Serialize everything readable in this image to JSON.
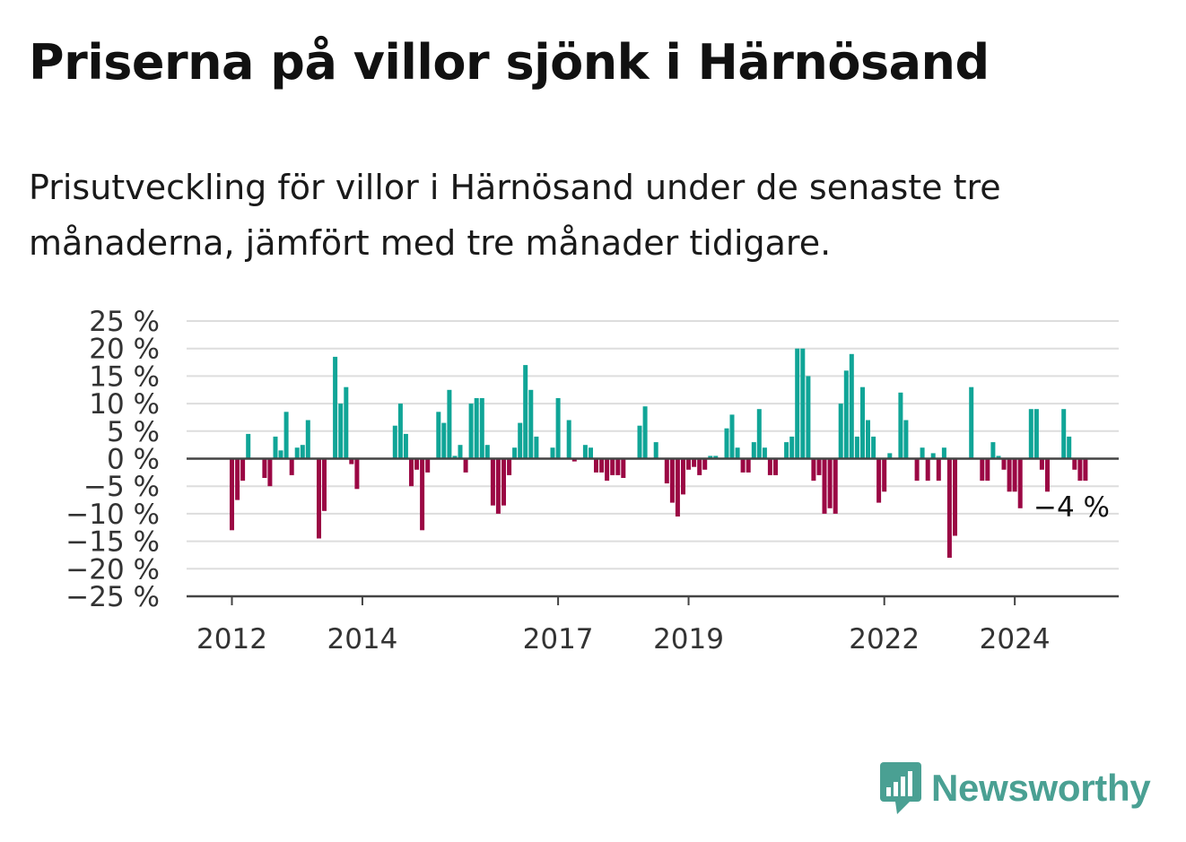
{
  "title": "Priserna på villor sjönk i Härnösand",
  "subtitle": "Prisutveckling för villor i Härnösand under de senaste tre månaderna, jämfört med tre månader tidigare.",
  "brand": {
    "name": "Newsworthy",
    "icon": "newsworthy-logo-icon",
    "color": "#4aa093"
  },
  "colors": {
    "positive": "#10a597",
    "negative": "#9b0744",
    "grid": "#dddddd",
    "axis": "#444444"
  },
  "chart_data": {
    "type": "bar",
    "ylim": [
      -25,
      25
    ],
    "yticks": [
      25,
      20,
      15,
      10,
      5,
      0,
      -5,
      -10,
      -15,
      -20,
      -25
    ],
    "ytick_labels": [
      "25 %",
      "20 %",
      "15 %",
      "10 %",
      "5 %",
      "0 %",
      "−5 %",
      "−10 %",
      "−15 %",
      "−20 %",
      "−25 %"
    ],
    "xtick_labels": [
      "2012",
      "2014",
      "2017",
      "2019",
      "2022",
      "2024"
    ],
    "xtick_months": [
      0,
      24,
      60,
      84,
      120,
      144
    ],
    "annotation": "−4 %",
    "series": [
      {
        "values": [
          -13,
          -7.5,
          -4,
          4.5,
          0,
          0,
          -3.5,
          -5,
          4,
          1.5,
          8.5,
          -3,
          2,
          2.5,
          7,
          0,
          -14.5,
          -9.5,
          0,
          18.5,
          10,
          13,
          -1,
          -5.5,
          0,
          0,
          0,
          0,
          0,
          0,
          6,
          10,
          4.5,
          -5,
          -2,
          -13,
          -2.5,
          0,
          8.5,
          6.5,
          12.5,
          0.5,
          2.5,
          -2.5,
          10,
          11,
          11,
          2.5,
          -8.5,
          -10,
          -8.5,
          -3,
          2,
          6.5,
          17,
          12.5,
          4,
          0,
          0,
          2,
          11,
          0,
          7,
          -0.5,
          0,
          2.5,
          2,
          -2.5,
          -2.5,
          -4,
          -3,
          -3,
          -3.5,
          0,
          0,
          6,
          9.5,
          0,
          3,
          0,
          -4.5,
          -8,
          -10.5,
          -6.5,
          -2,
          -1.5,
          -3,
          -2,
          0.5,
          0.5,
          0,
          5.5,
          8,
          2,
          -2.5,
          -2.5,
          3,
          9,
          2,
          -3,
          -3,
          0,
          3,
          4,
          20,
          20,
          15,
          -4,
          -3,
          -10,
          -9,
          -10,
          10,
          16,
          19,
          4,
          13,
          7,
          4,
          -8,
          -6,
          1,
          0,
          12,
          7,
          0,
          -4,
          2,
          -4,
          1,
          -4,
          2,
          -18,
          -14,
          0,
          0,
          13,
          0,
          -4,
          -4,
          3,
          0.5,
          -2,
          -6,
          -6,
          -9,
          0,
          9,
          9,
          -2,
          -6,
          0,
          0,
          9,
          4,
          -2,
          -4,
          -4
        ]
      }
    ]
  }
}
